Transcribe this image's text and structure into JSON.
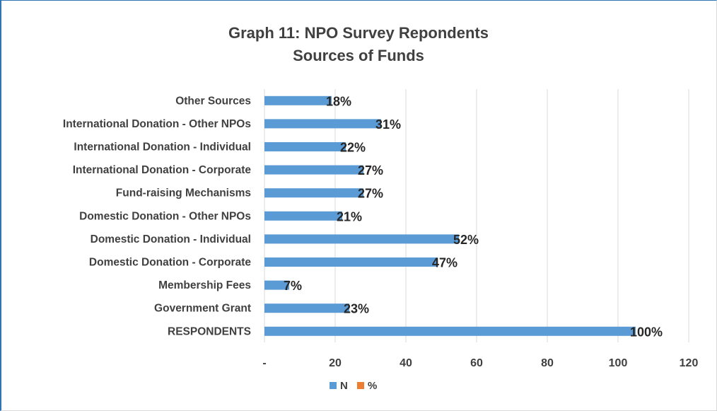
{
  "chart_data": {
    "type": "bar",
    "orientation": "horizontal",
    "title": [
      "Graph 11: NPO Survey Repondents",
      "Sources of Funds"
    ],
    "categories": [
      "Other Sources",
      "International Donation - Other NPOs",
      "International Donation - Individual",
      "International Donation - Corporate",
      "Fund-raising Mechanisms",
      "Domestic Donation - Other NPOs",
      "Domestic Donation - Individual",
      "Domestic Donation - Corporate",
      "Membership Fees",
      "Government Grant",
      "RESPONDENTS"
    ],
    "series": [
      {
        "name": "N",
        "color": "#5b9bd5",
        "values": [
          19,
          33,
          23,
          28,
          28,
          22,
          55,
          49,
          7,
          24,
          105
        ]
      },
      {
        "name": "%",
        "color": "#ed7d31",
        "values": [
          18,
          31,
          22,
          27,
          27,
          21,
          52,
          47,
          7,
          23,
          100
        ]
      }
    ],
    "data_labels": [
      "18%",
      "31%",
      "22%",
      "27%",
      "27%",
      "21%",
      "52%",
      "47%",
      "7%",
      "23%",
      "100%"
    ],
    "x_ticks": [
      "-",
      "20",
      "40",
      "60",
      "80",
      "100",
      "120"
    ],
    "xlim": [
      0,
      120
    ],
    "grid": true,
    "legend_position": "bottom"
  }
}
